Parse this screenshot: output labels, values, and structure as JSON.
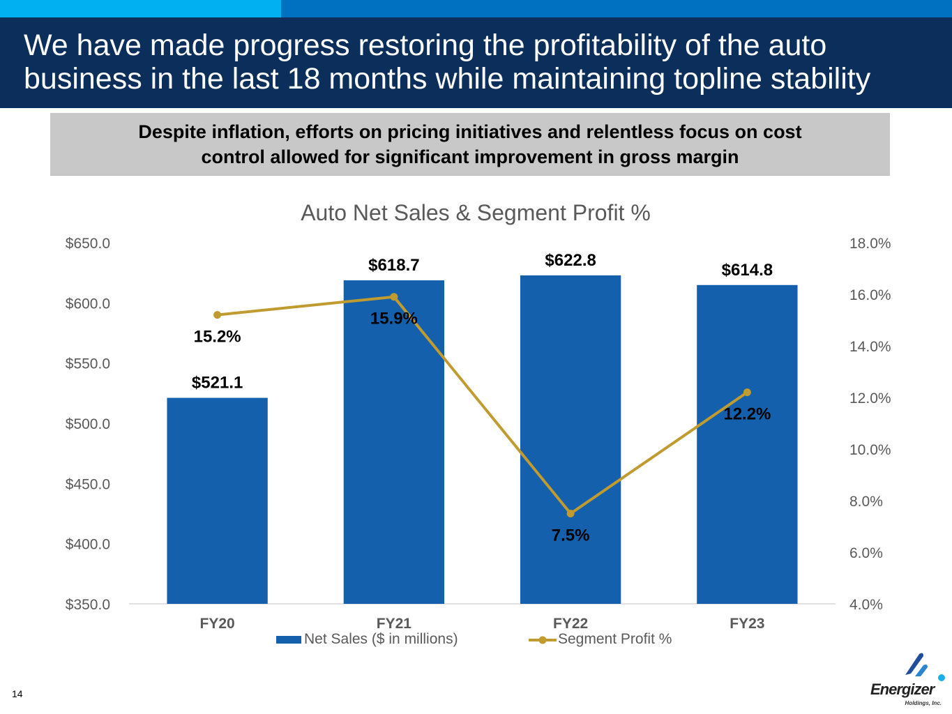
{
  "header": {
    "title": "We have made progress restoring the profitability of the auto\nbusiness in the last 18 months while maintaining topline stability"
  },
  "callout": {
    "text": "Despite inflation, efforts on pricing initiatives and relentless focus on cost\ncontrol allowed for significant improvement in gross margin"
  },
  "colors": {
    "bar": "#1460ad",
    "line": "#bf9b30",
    "header_bg": "#0b2f5a",
    "axis_text": "#595959"
  },
  "chart_data": {
    "type": "bar",
    "title": "Auto Net Sales & Segment Profit %",
    "categories": [
      "FY20",
      "FY21",
      "FY22",
      "FY23"
    ],
    "series": [
      {
        "name": "Net Sales ($ in millions)",
        "type": "bar",
        "axis": "left",
        "values": [
          521.1,
          618.7,
          622.8,
          614.8
        ],
        "labels": [
          "$521.1",
          "$618.7",
          "$622.8",
          "$614.8"
        ]
      },
      {
        "name": "Segment Profit %",
        "type": "line",
        "axis": "right",
        "values": [
          15.2,
          15.9,
          7.5,
          12.2
        ],
        "labels": [
          "15.2%",
          "15.9%",
          "7.5%",
          "12.2%"
        ]
      }
    ],
    "y_left": {
      "min": 350,
      "max": 650,
      "ticks": [
        350,
        400,
        450,
        500,
        550,
        600,
        650
      ],
      "tick_labels": [
        "$350.0",
        "$400.0",
        "$450.0",
        "$500.0",
        "$550.0",
        "$600.0",
        "$650.0"
      ]
    },
    "y_right": {
      "min": 4,
      "max": 18,
      "ticks": [
        4,
        6,
        8,
        10,
        12,
        14,
        16,
        18
      ],
      "tick_labels": [
        "4.0%",
        "6.0%",
        "8.0%",
        "10.0%",
        "12.0%",
        "14.0%",
        "16.0%",
        "18.0%"
      ]
    },
    "xlabel": "",
    "ylabel": "",
    "grid": false,
    "legend": "bottom"
  },
  "footer": {
    "page_number": "14",
    "logo_name": "Energizer",
    "logo_sub": "Holdings, Inc."
  }
}
